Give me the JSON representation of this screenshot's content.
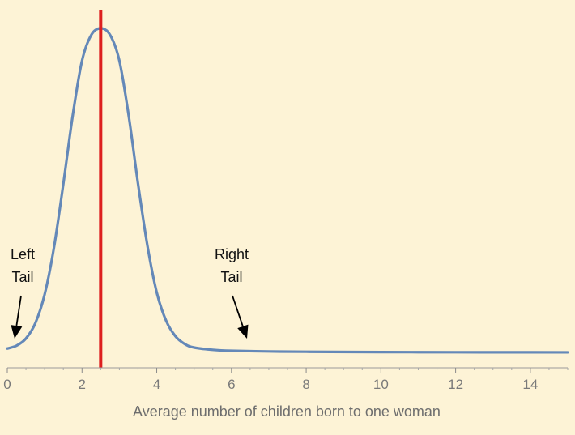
{
  "chart_data": {
    "type": "line",
    "title": "",
    "xlabel": "Average number of children born to one woman",
    "ylabel": "",
    "xlim": [
      0,
      15
    ],
    "ylim": [
      0,
      1
    ],
    "grid": false,
    "y_axis_visible": false,
    "x_ticks": [
      0,
      2,
      4,
      6,
      8,
      10,
      12,
      14
    ],
    "x_tick_labels": [
      "0",
      "2",
      "4",
      "6",
      "8",
      "10",
      "12",
      "14"
    ],
    "series": [
      {
        "color": "#6488b8",
        "x": [
          0,
          0.25,
          0.5,
          0.75,
          1.0,
          1.25,
          1.5,
          1.75,
          2.0,
          2.25,
          2.5,
          2.75,
          3.0,
          3.25,
          3.5,
          3.75,
          4.0,
          4.25,
          4.5,
          4.75,
          5.0,
          5.5,
          6.0,
          7.0,
          8.0,
          10.0,
          12.0,
          14.0,
          15.0
        ],
        "values": [
          0.012,
          0.021,
          0.043,
          0.09,
          0.179,
          0.324,
          0.52,
          0.73,
          0.9,
          0.98,
          1.0,
          0.98,
          0.9,
          0.73,
          0.52,
          0.33,
          0.185,
          0.098,
          0.05,
          0.026,
          0.015,
          0.008,
          0.005,
          0.003,
          0.002,
          0.001,
          0.0005,
          0.0003,
          0.0002
        ]
      }
    ],
    "mean_line": {
      "x": 2.5,
      "color": "#dd1f1f"
    },
    "annotations": [
      {
        "lines": [
          "Left",
          "Tail"
        ],
        "arrow_to_x": 0.2
      },
      {
        "lines": [
          "Right",
          "Tail"
        ],
        "arrow_to_x": 6.5
      }
    ]
  }
}
